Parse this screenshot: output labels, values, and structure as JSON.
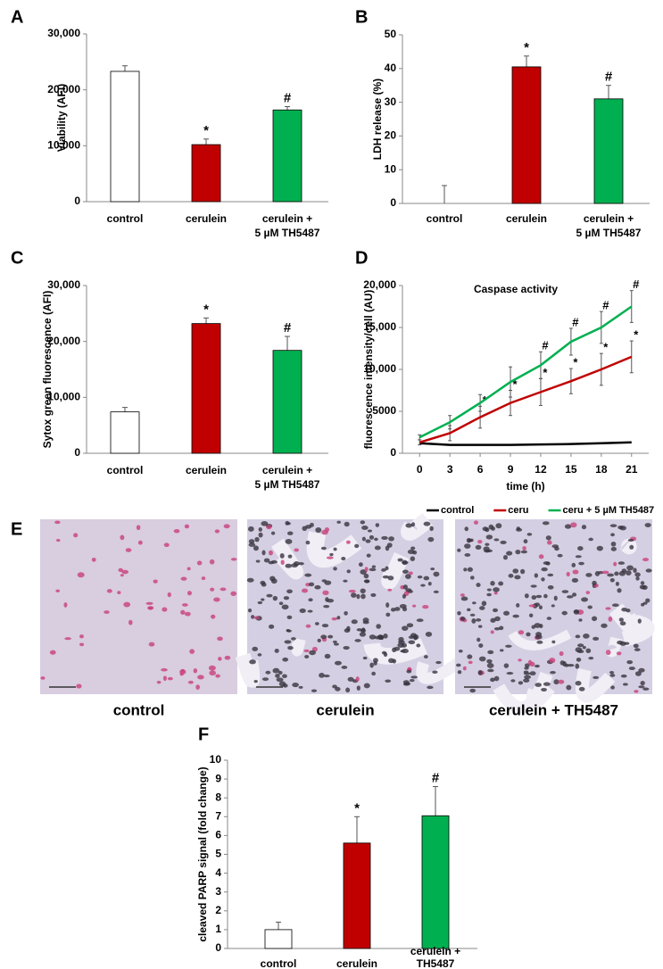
{
  "chart_data": [
    {
      "panel": "A",
      "type": "bar",
      "ylabel": "Viability (AFI)",
      "categories": [
        "control",
        "cerulein",
        [
          "cerulein +",
          "5 µM TH5487"
        ]
      ],
      "values": [
        23300,
        10200,
        16400
      ],
      "errors": [
        1000,
        1000,
        600
      ],
      "annotations": [
        null,
        "*",
        "#"
      ],
      "colors": [
        "#ffffff",
        "#c00000",
        "#00b050"
      ],
      "ylim": [
        0,
        30000
      ],
      "yticks": [
        0,
        {
          "value": 10000,
          "label": "10,000"
        },
        {
          "value": 20000,
          "label": "20,000"
        },
        {
          "value": 30000,
          "label": "30,000"
        }
      ]
    },
    {
      "panel": "B",
      "type": "bar",
      "ylabel": "LDH release (%)",
      "categories": [
        "control",
        "cerulein",
        [
          "cerulein +",
          "5 µM TH5487"
        ]
      ],
      "values": [
        0,
        40.5,
        31
      ],
      "errors": [
        5.3,
        3.2,
        4
      ],
      "annotations": [
        null,
        "*",
        "#"
      ],
      "colors": [
        "#ffffff",
        "#c00000",
        "#00b050"
      ],
      "ylim": [
        0,
        50
      ],
      "yticks": [
        0,
        10,
        20,
        30,
        40,
        50
      ]
    },
    {
      "panel": "C",
      "type": "bar",
      "ylabel": "Sytox green fluorescence (AFI)",
      "categories": [
        "control",
        "cerulein",
        [
          "cerulein +",
          "5 µM TH5487"
        ]
      ],
      "values": [
        7400,
        23200,
        18400
      ],
      "errors": [
        800,
        1000,
        2500
      ],
      "annotations": [
        null,
        "*",
        "#"
      ],
      "colors": [
        "#ffffff",
        "#c00000",
        "#00b050"
      ],
      "ylim": [
        0,
        30000
      ],
      "yticks": [
        0,
        {
          "value": 10000,
          "label": "10,000"
        },
        {
          "value": 20000,
          "label": "20,000"
        },
        {
          "value": 30000,
          "label": "30,000"
        }
      ]
    },
    {
      "panel": "D",
      "type": "line",
      "title": "Caspase activity",
      "xlabel": "time (h)",
      "ylabel": "fluorescence intensity/cell (AU)",
      "x": [
        0,
        3,
        6,
        9,
        12,
        15,
        18,
        21
      ],
      "xlim": [
        -1.7,
        22.7
      ],
      "xticks": [
        0,
        3,
        6,
        9,
        12,
        15,
        18,
        21
      ],
      "ylim": [
        0,
        20000
      ],
      "yticks": [
        0,
        5000,
        {
          "value": 10000,
          "label": "10,000"
        },
        {
          "value": 15000,
          "label": "15,000"
        },
        {
          "value": 20000,
          "label": "20,000"
        }
      ],
      "legend": "bottom",
      "series": [
        {
          "name": "control",
          "color": "#000000",
          "values": [
            1200,
            1000,
            1000,
            1000,
            1050,
            1100,
            1200,
            1300
          ]
        },
        {
          "name": "ceru",
          "color": "#c00000",
          "values": [
            1300,
            2400,
            4300,
            6000,
            7300,
            8600,
            10000,
            11500
          ],
          "errors": [
            300,
            900,
            1300,
            1500,
            1600,
            1500,
            1900,
            1900
          ],
          "annotations": [
            null,
            null,
            "*",
            "*",
            "*",
            "*",
            "*",
            "*"
          ]
        },
        {
          "name": "ceru + 5 µM TH5487",
          "color": "#00b050",
          "values": [
            1900,
            3700,
            6000,
            8500,
            10500,
            13300,
            15000,
            17500
          ],
          "errors": [
            300,
            800,
            1000,
            1800,
            1600,
            1600,
            1900,
            1900
          ],
          "annotations": [
            null,
            null,
            null,
            null,
            "#",
            "#",
            "#",
            "#"
          ]
        }
      ]
    },
    {
      "panel": "F",
      "type": "bar",
      "ylabel": "cleaved PARP signal (fold change)",
      "categories": [
        "control",
        "cerulein",
        [
          "cerulein +",
          "TH5487"
        ]
      ],
      "values": [
        1.0,
        5.6,
        7.05
      ],
      "errors": [
        0.4,
        1.4,
        1.55
      ],
      "annotations": [
        null,
        "*",
        "#"
      ],
      "colors": [
        "#ffffff",
        "#c00000",
        "#00b050"
      ],
      "ylim": [
        0,
        10
      ],
      "yticks": [
        0,
        1,
        2,
        3,
        4,
        5,
        6,
        7,
        8,
        9,
        10
      ]
    }
  ],
  "micrographs": {
    "panel": "E",
    "captions": [
      "control",
      "cerulein",
      "cerulein + TH5487"
    ]
  }
}
